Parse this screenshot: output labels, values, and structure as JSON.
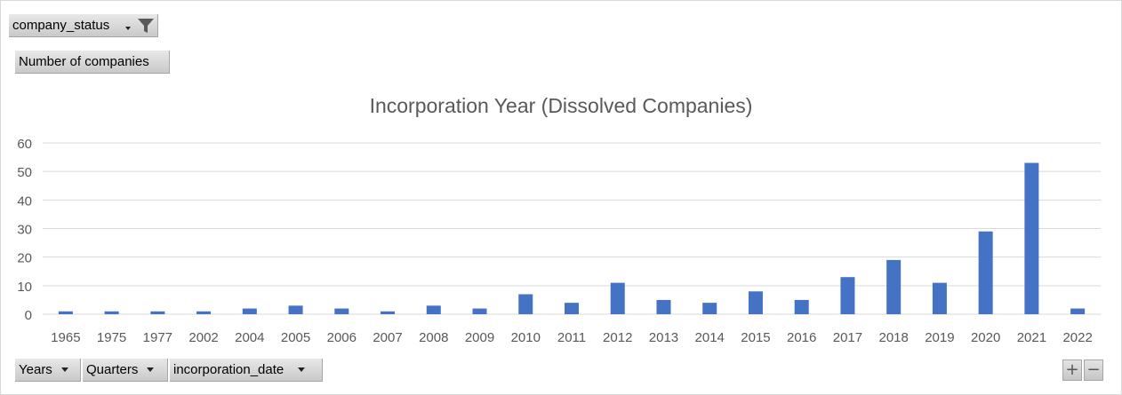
{
  "filter_field": {
    "label": "company_status"
  },
  "value_field": {
    "label": "Number of companies"
  },
  "axis_fields": [
    {
      "label": "Years"
    },
    {
      "label": "Quarters"
    },
    {
      "label": "incorporation_date"
    }
  ],
  "zoom_controls": {
    "expand": "+",
    "collapse": "−"
  },
  "icons": {
    "filter": "funnel-icon",
    "dropdown": "chevron-down-icon"
  },
  "colors": {
    "bar": "#4472c4",
    "grid": "#d9d9d9",
    "text": "#595959"
  },
  "chart_data": {
    "type": "bar",
    "title": "Incorporation Year (Dissolved Companies)",
    "xlabel": "",
    "ylabel": "",
    "ylim": [
      0,
      60
    ],
    "yticks": [
      0,
      10,
      20,
      30,
      40,
      50,
      60
    ],
    "grid": true,
    "legend": "none",
    "categories": [
      "1965",
      "1975",
      "1977",
      "2002",
      "2004",
      "2005",
      "2006",
      "2007",
      "2008",
      "2009",
      "2010",
      "2011",
      "2012",
      "2013",
      "2014",
      "2015",
      "2016",
      "2017",
      "2018",
      "2019",
      "2020",
      "2021",
      "2022"
    ],
    "values": [
      1,
      1,
      1,
      1,
      2,
      3,
      2,
      1,
      3,
      2,
      7,
      4,
      11,
      5,
      4,
      8,
      5,
      13,
      19,
      11,
      29,
      53,
      2
    ]
  }
}
